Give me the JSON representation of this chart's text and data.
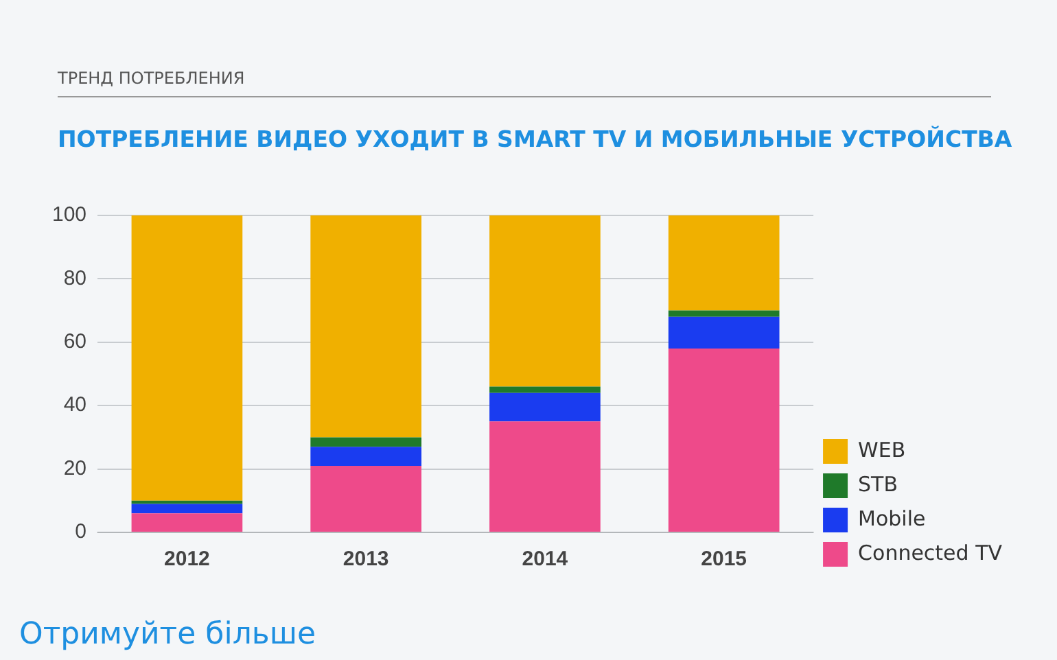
{
  "chart_data": {
    "type": "bar",
    "subtitle": "ТРЕНД ПОТРЕБЛЕНИЯ",
    "title": "ПОТРЕБЛЕНИЕ ВИДЕО УХОДИТ В SMART TV И МОБИЛЬНЫЕ УСТРОЙСТВА",
    "categories": [
      "2012",
      "2013",
      "2014",
      "2015"
    ],
    "series": [
      {
        "name": "Connected TV",
        "color": "#ee4a8a",
        "values": [
          6,
          21,
          35,
          58
        ]
      },
      {
        "name": "Mobile",
        "color": "#1a3cf0",
        "values": [
          3,
          6,
          9,
          10
        ]
      },
      {
        "name": "STB",
        "color": "#1f7a2a",
        "values": [
          1,
          3,
          2,
          2
        ]
      },
      {
        "name": "WEB",
        "color": "#f0b000",
        "values": [
          90,
          70,
          54,
          30
        ]
      }
    ],
    "stacked": true,
    "ylim": [
      0,
      100
    ],
    "yticks": [
      0,
      20,
      40,
      60,
      80,
      100
    ],
    "grid": "y",
    "legend": "right",
    "annotations": [
      "Отримуйте більше"
    ]
  }
}
